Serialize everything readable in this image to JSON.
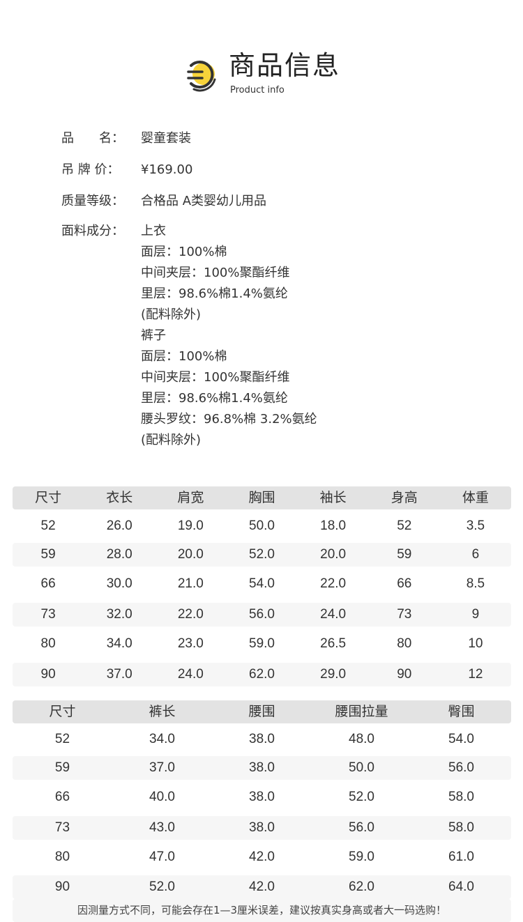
{
  "header": {
    "title": "商品信息",
    "subtitle": "Product info",
    "accent": "#f7d33a"
  },
  "info": [
    {
      "label": "品　　名：",
      "value": "婴童套装"
    },
    {
      "label": "吊 牌 价：",
      "value": "¥169.00"
    },
    {
      "label": "质量等级：",
      "value": "合格品 A类婴幼儿用品"
    },
    {
      "label": "面料成分：",
      "lines": [
        "上衣",
        "面层：100%棉",
        "中间夹层：100%聚酯纤维",
        "里层：98.6%棉1.4%氨纶",
        "(配料除外)",
        "裤子",
        "面层：100%棉",
        "中间夹层：100%聚酯纤维",
        "里层：98.6%棉1.4%氨纶",
        "腰头罗纹：96.8%棉 3.2%氨纶",
        "(配料除外)"
      ]
    }
  ],
  "top_table": {
    "headers": [
      "尺寸",
      "衣长",
      "肩宽",
      "胸围",
      "袖长",
      "身高",
      "体重"
    ],
    "rows": [
      [
        "52",
        "26.0",
        "19.0",
        "50.0",
        "18.0",
        "52",
        "3.5"
      ],
      [
        "59",
        "28.0",
        "20.0",
        "52.0",
        "20.0",
        "59",
        "6"
      ],
      [
        "66",
        "30.0",
        "21.0",
        "54.0",
        "22.0",
        "66",
        "8.5"
      ],
      [
        "73",
        "32.0",
        "22.0",
        "56.0",
        "24.0",
        "73",
        "9"
      ],
      [
        "80",
        "34.0",
        "23.0",
        "59.0",
        "26.5",
        "80",
        "10"
      ],
      [
        "90",
        "37.0",
        "24.0",
        "62.0",
        "29.0",
        "90",
        "12"
      ]
    ]
  },
  "pants_table": {
    "headers": [
      "尺寸",
      "裤长",
      "腰围",
      "腰围拉量",
      "臀围"
    ],
    "rows": [
      [
        "52",
        "34.0",
        "38.0",
        "48.0",
        "54.0"
      ],
      [
        "59",
        "37.0",
        "38.0",
        "50.0",
        "56.0"
      ],
      [
        "66",
        "40.0",
        "38.0",
        "52.0",
        "58.0"
      ],
      [
        "73",
        "43.0",
        "38.0",
        "56.0",
        "58.0"
      ],
      [
        "80",
        "47.0",
        "42.0",
        "59.0",
        "61.0"
      ],
      [
        "90",
        "52.0",
        "42.0",
        "62.0",
        "64.0"
      ]
    ]
  },
  "note": "因测量方式不同，可能会存在1—3厘米误差，建议按真实身高或者大一码选购！"
}
